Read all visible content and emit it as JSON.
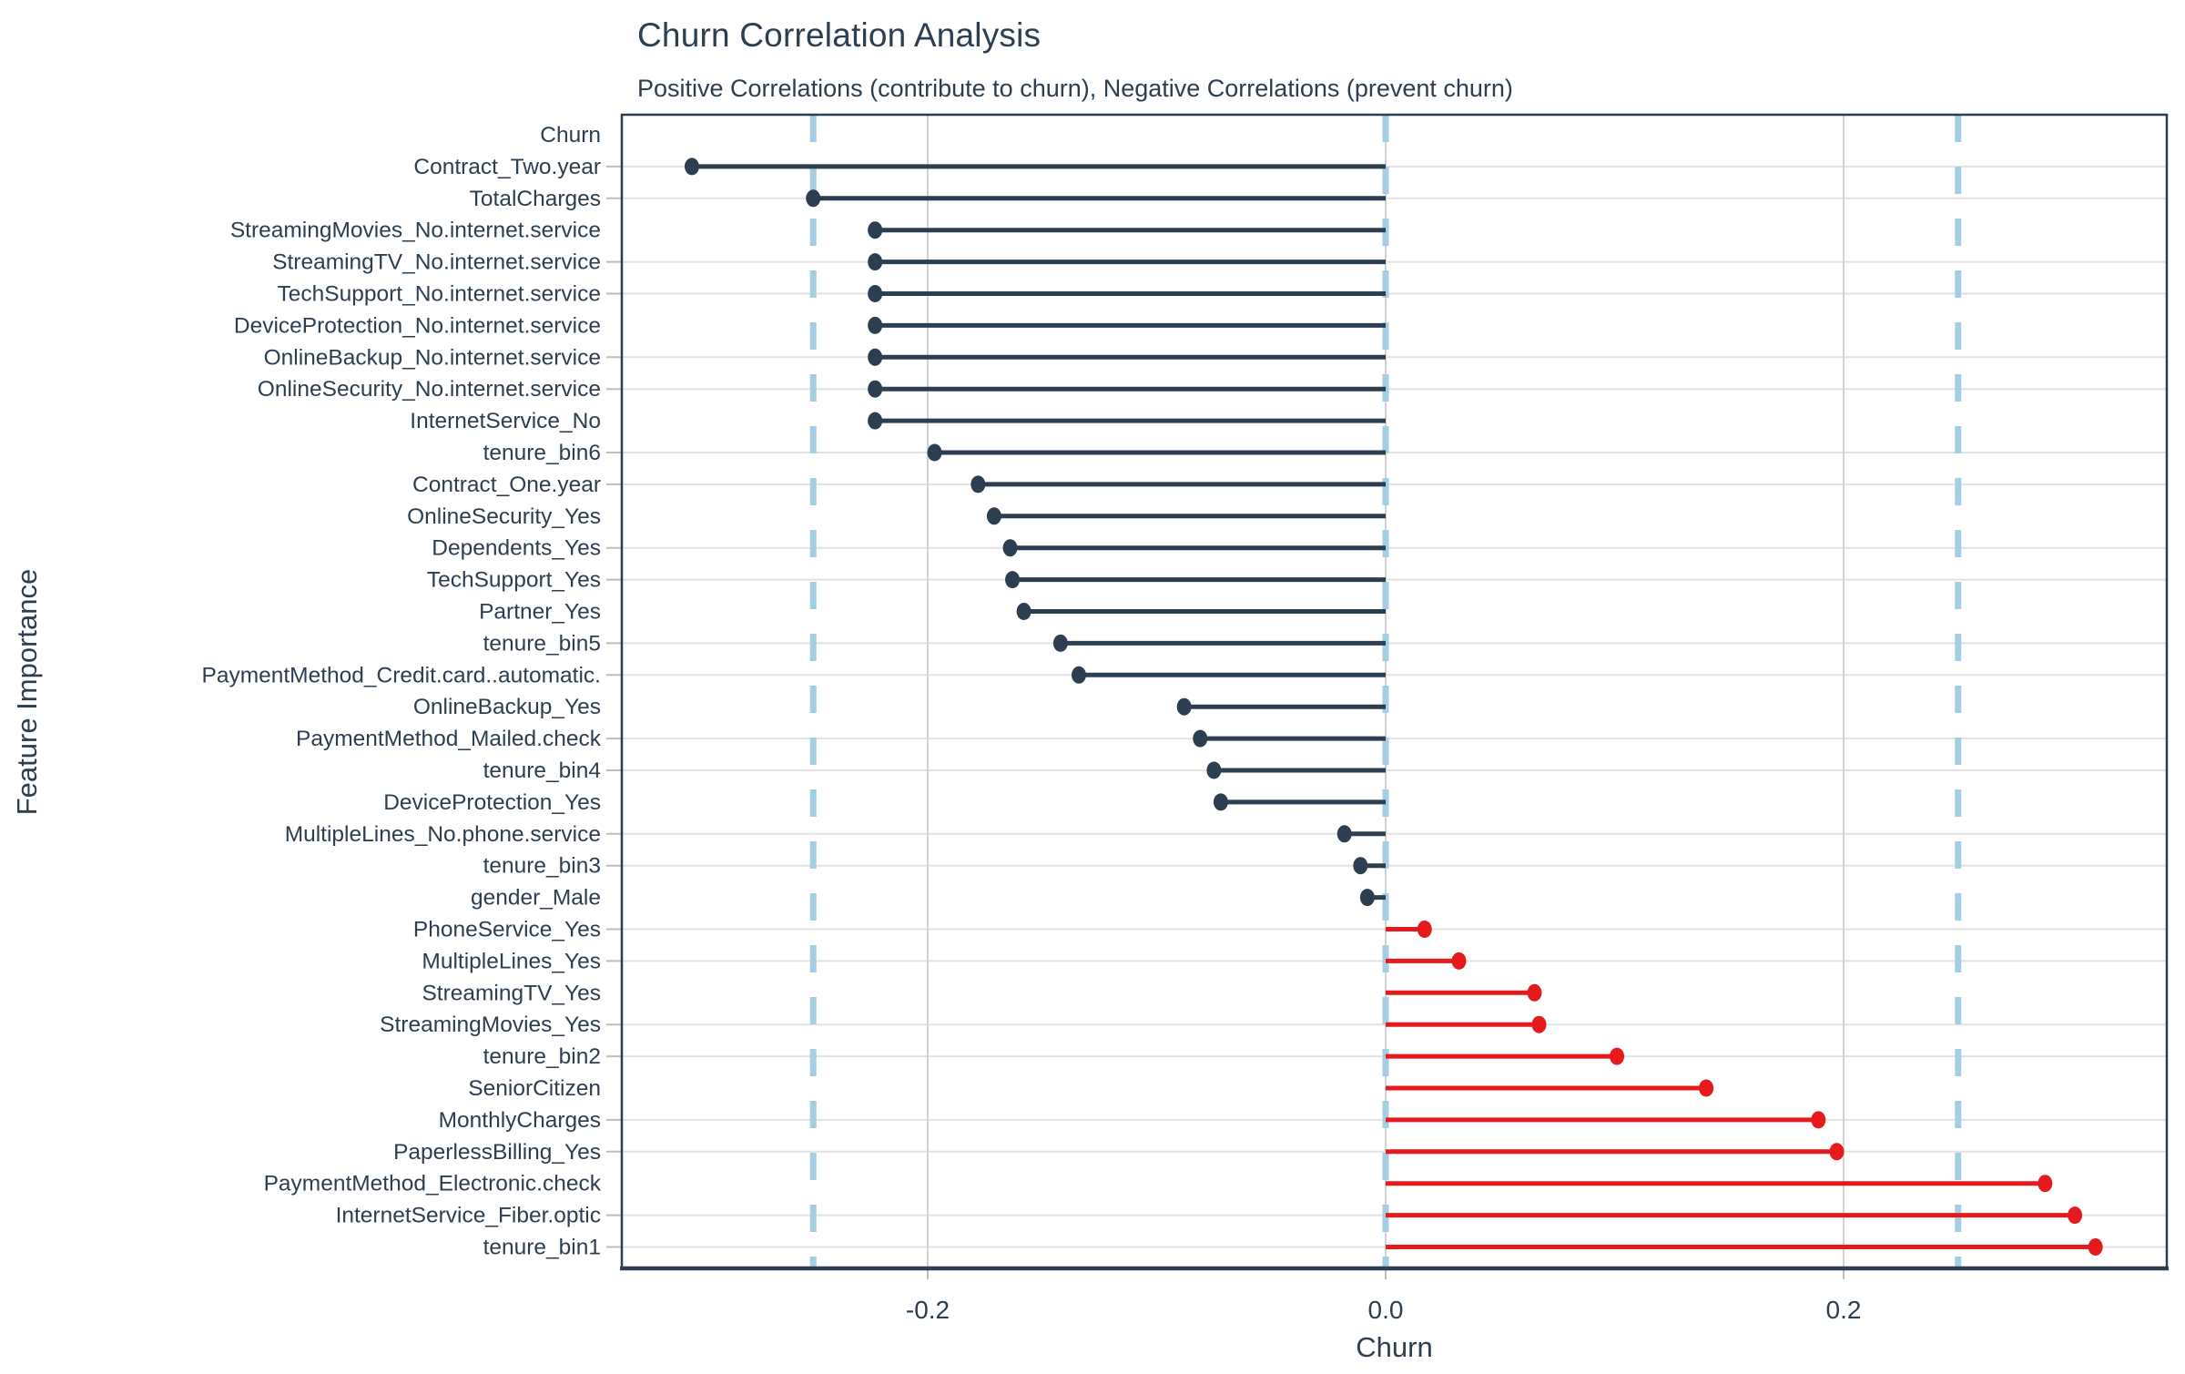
{
  "chart_data": {
    "type": "bar",
    "variant": "horizontal-lollipop",
    "title": "Churn Correlation Analysis",
    "subtitle": "Positive Correlations (contribute to churn), Negative Correlations (prevent churn)",
    "xlabel": "Churn",
    "ylabel": "Feature Importance",
    "xlim": [
      -0.334,
      0.341
    ],
    "x_ticks": [
      -0.2,
      0.0,
      0.2
    ],
    "x_tick_labels": [
      "-0.2",
      "0.0",
      "0.2"
    ],
    "grid": "on",
    "legend": "none",
    "reference_lines": {
      "values": [
        -0.25,
        0.0,
        0.25
      ],
      "style": "dashed"
    },
    "categories": [
      "Churn",
      "Contract_Two.year",
      "TotalCharges",
      "StreamingMovies_No.internet.service",
      "StreamingTV_No.internet.service",
      "TechSupport_No.internet.service",
      "DeviceProtection_No.internet.service",
      "OnlineBackup_No.internet.service",
      "OnlineSecurity_No.internet.service",
      "InternetService_No",
      "tenure_bin6",
      "Contract_One.year",
      "OnlineSecurity_Yes",
      "Dependents_Yes",
      "TechSupport_Yes",
      "Partner_Yes",
      "tenure_bin5",
      "PaymentMethod_Credit.card..automatic.",
      "OnlineBackup_Yes",
      "PaymentMethod_Mailed.check",
      "tenure_bin4",
      "DeviceProtection_Yes",
      "MultipleLines_No.phone.service",
      "tenure_bin3",
      "gender_Male",
      "PhoneService_Yes",
      "MultipleLines_Yes",
      "StreamingTV_Yes",
      "StreamingMovies_Yes",
      "tenure_bin2",
      "SeniorCitizen",
      "MonthlyCharges",
      "PaperlessBilling_Yes",
      "PaymentMethod_Electronic.check",
      "InternetService_Fiber.optic",
      "tenure_bin1"
    ],
    "values": [
      null,
      -0.303,
      -0.25,
      -0.223,
      -0.223,
      -0.223,
      -0.223,
      -0.223,
      -0.223,
      -0.223,
      -0.197,
      -0.178,
      -0.171,
      -0.164,
      -0.163,
      -0.158,
      -0.142,
      -0.134,
      -0.088,
      -0.081,
      -0.075,
      -0.072,
      -0.018,
      -0.011,
      -0.008,
      0.017,
      0.032,
      0.065,
      0.067,
      0.101,
      0.14,
      0.189,
      0.197,
      0.288,
      0.301,
      0.31
    ],
    "colors": {
      "negative_stem": "#2C3E50",
      "positive_stem": "#E41A1C",
      "reference_line": "#A6CEE3",
      "grid_major_v": "#D2D2D2",
      "grid_major_h": "#E2E2E2",
      "axis_tick": "#BEBEBE",
      "panel_border": "#2C3E50",
      "axis_text": "#2C3E50",
      "background": "#FFFFFF"
    }
  }
}
